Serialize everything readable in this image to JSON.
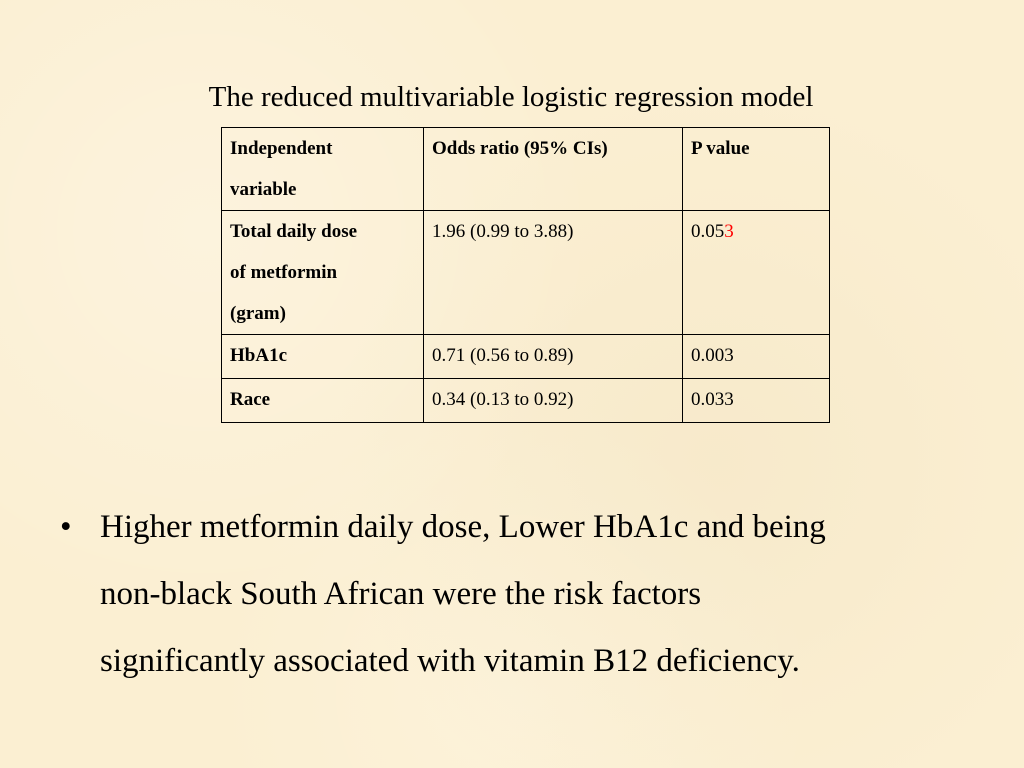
{
  "slide": {
    "title": "The reduced multivariable logistic regression model",
    "table": {
      "headers": [
        "Independent\nvariable",
        "Odds ratio (95% CIs)",
        "P value"
      ],
      "rows": [
        {
          "variable": "Total daily dose\n of metformin\n(gram)",
          "odds_ratio": "1.96 (0.99 to 3.88)",
          "p_value_prefix": "0.05",
          "p_value_highlight": "3",
          "highlight_color": "#ff0000"
        },
        {
          "variable": "HbA1c",
          "odds_ratio": "0.71 (0.56 to 0.89)",
          "p_value": "0.003"
        },
        {
          "variable": "Race",
          "odds_ratio": "0.34 (0.13 to 0.92)",
          "p_value": "0.033"
        }
      ]
    },
    "bullet": {
      "marker": "•",
      "lines": [
        "Higher metformin daily dose, Lower HbA1c  and being",
        "non-black South African were the risk factors",
        "significantly associated with vitamin B12 deficiency."
      ]
    }
  }
}
